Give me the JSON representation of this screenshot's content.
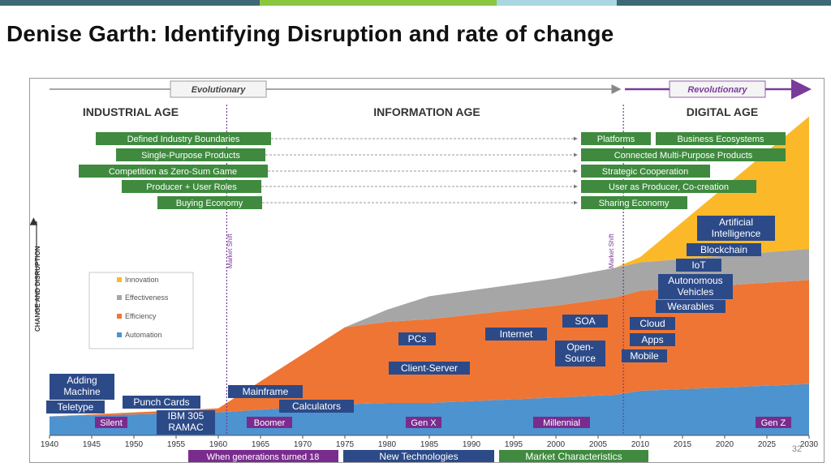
{
  "slide": {
    "title": "Denise Garth:  Identifying Disruption and rate of change",
    "page_number": "32",
    "topbar_colors": [
      "#3d6874",
      "#8cc63f",
      "#a9d6e0",
      "#3d6874"
    ]
  },
  "diagram": {
    "evolutionary_label": "Evolutionary",
    "revolutionary_label": "Revolutionary",
    "y_axis_label": "CHANGE AND DISRUPTION",
    "market_shift_label": "Market Shift",
    "ages": [
      "INDUSTRIAL AGE",
      "INFORMATION AGE",
      "DIGITAL AGE"
    ],
    "characteristics_left": [
      "Defined Industry Boundaries",
      "Single-Purpose Products",
      "Competition as Zero-Sum Game",
      "Producer + User Roles",
      "Buying Economy"
    ],
    "characteristics_right": [
      "Platforms",
      "Business Ecosystems",
      "Connected Multi-Purpose Products",
      "Strategic Cooperation",
      "User as Producer, Co-creation",
      "Sharing Economy"
    ],
    "tech_labels": [
      "Adding Machine",
      "Teletype",
      "Punch Cards",
      "IBM 305 RAMAC",
      "Mainframe",
      "Calculators",
      "PCs",
      "Client-Server",
      "Internet",
      "SOA",
      "Open-Source",
      "Cloud",
      "Apps",
      "Mobile",
      "Wearables",
      "Autonomous Vehicles",
      "IoT",
      "Blockchain",
      "Artificial Intelligence"
    ],
    "generations": [
      "Silent",
      "Boomer",
      "Gen X",
      "Millennial",
      "Gen Z"
    ],
    "bottom_legend": [
      "When generations turned 18",
      "New Technologies",
      "Market Characteristics"
    ],
    "colors": {
      "innovation": "#fbb929",
      "effectiveness": "#a6a6a6",
      "efficiency": "#ef7534",
      "automation": "#4c93cf",
      "tech_box": "#2c4a88",
      "char_box": "#3f8a3f",
      "generation_box": "#7a2c8e",
      "market_shift": "#7a3a9a"
    }
  },
  "chart_data": {
    "type": "area",
    "stacked": true,
    "x": [
      1940,
      1960,
      1975,
      1980,
      1985,
      2000,
      2007,
      2010,
      2030
    ],
    "series": [
      {
        "name": "Automation",
        "values": [
          14,
          17,
          23,
          24,
          24,
          28,
          30,
          33,
          38
        ]
      },
      {
        "name": "Efficiency",
        "values": [
          0,
          3,
          57,
          60,
          62,
          68,
          72,
          74,
          77
        ]
      },
      {
        "name": "Effectiveness",
        "values": [
          0,
          0,
          0,
          9,
          17,
          20,
          22,
          21,
          23
        ]
      },
      {
        "name": "Innovation",
        "values": [
          0,
          0,
          0,
          0,
          0,
          0,
          0,
          4,
          98
        ]
      }
    ],
    "legend": [
      "Innovation",
      "Effectiveness",
      "Efficiency",
      "Automation"
    ],
    "xlabel": "",
    "ylabel": "CHANGE AND DISRUPTION",
    "xticks": [
      1940,
      1945,
      1950,
      1955,
      1960,
      1965,
      1970,
      1975,
      1980,
      1985,
      1990,
      1995,
      2000,
      2005,
      2010,
      2015,
      2020,
      2025,
      2030
    ],
    "xlim": [
      1940,
      2030
    ],
    "ylim": [
      0,
      240
    ],
    "market_shifts": [
      1961,
      2008
    ]
  }
}
